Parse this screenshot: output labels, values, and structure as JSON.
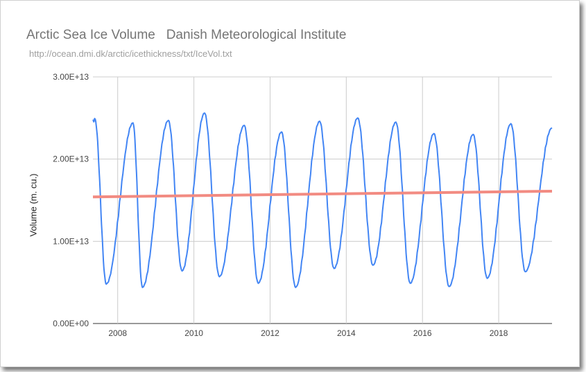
{
  "chart_data": {
    "type": "line",
    "title": "Arctic Sea Ice Volume   Danish Meteorological Institute",
    "subtitle": "http://ocean.dmi.dk/arctic/icethickness/txt/IceVol.txt",
    "xlabel": "",
    "ylabel": "Volume (m. cu.)",
    "xlim": [
      2007.35,
      2019.4
    ],
    "ylim": [
      0,
      30000000000000
    ],
    "x_ticks": [
      2008,
      2010,
      2012,
      2014,
      2016,
      2018
    ],
    "x_tick_labels": [
      "2008",
      "2010",
      "2012",
      "2014",
      "2016",
      "2018"
    ],
    "y_ticks": [
      0,
      10000000000000,
      20000000000000,
      30000000000000
    ],
    "y_tick_labels": [
      "0.00E+00",
      "1.00E+13",
      "2.00E+13",
      "3.00E+13"
    ],
    "grid": true,
    "legend": "none",
    "series": [
      {
        "color": "#4285f4",
        "annual_extremes": [
          {
            "year": 2007,
            "min_x": 2007.7,
            "min": 4800000000000,
            "max_x": 2008.4,
            "max": 24400000000000
          },
          {
            "year": 2008,
            "min_x": 2008.65,
            "min": 4400000000000,
            "max_x": 2009.33,
            "max": 24700000000000
          },
          {
            "year": 2009,
            "min_x": 2009.69,
            "min": 6400000000000,
            "max_x": 2010.28,
            "max": 25600000000000
          },
          {
            "year": 2010,
            "min_x": 2010.67,
            "min": 5700000000000,
            "max_x": 2011.32,
            "max": 24100000000000
          },
          {
            "year": 2011,
            "min_x": 2011.69,
            "min": 4900000000000,
            "max_x": 2012.3,
            "max": 23300000000000
          },
          {
            "year": 2012,
            "min_x": 2012.67,
            "min": 4400000000000,
            "max_x": 2013.3,
            "max": 24600000000000
          },
          {
            "year": 2013,
            "min_x": 2013.68,
            "min": 6700000000000,
            "max_x": 2014.3,
            "max": 25000000000000
          },
          {
            "year": 2014,
            "min_x": 2014.7,
            "min": 7100000000000,
            "max_x": 2015.3,
            "max": 24500000000000
          },
          {
            "year": 2015,
            "min_x": 2015.68,
            "min": 4900000000000,
            "max_x": 2016.3,
            "max": 23100000000000
          },
          {
            "year": 2016,
            "min_x": 2016.7,
            "min": 4500000000000,
            "max_x": 2017.33,
            "max": 23000000000000
          },
          {
            "year": 2017,
            "min_x": 2017.7,
            "min": 5500000000000,
            "max_x": 2018.32,
            "max": 24300000000000
          },
          {
            "year": 2018,
            "min_x": 2018.7,
            "min": 6300000000000,
            "max_x": 2019.4,
            "max": 23800000000000
          }
        ],
        "start": {
          "x": 2007.35,
          "y": 24700000000000
        },
        "early_2007_peak": {
          "x": 2007.4,
          "y": 24900000000000
        }
      },
      {
        "color": "#f28b82",
        "points": [
          {
            "x": 2007.35,
            "y": 15400000000000
          },
          {
            "x": 2019.4,
            "y": 16100000000000
          }
        ]
      }
    ]
  }
}
